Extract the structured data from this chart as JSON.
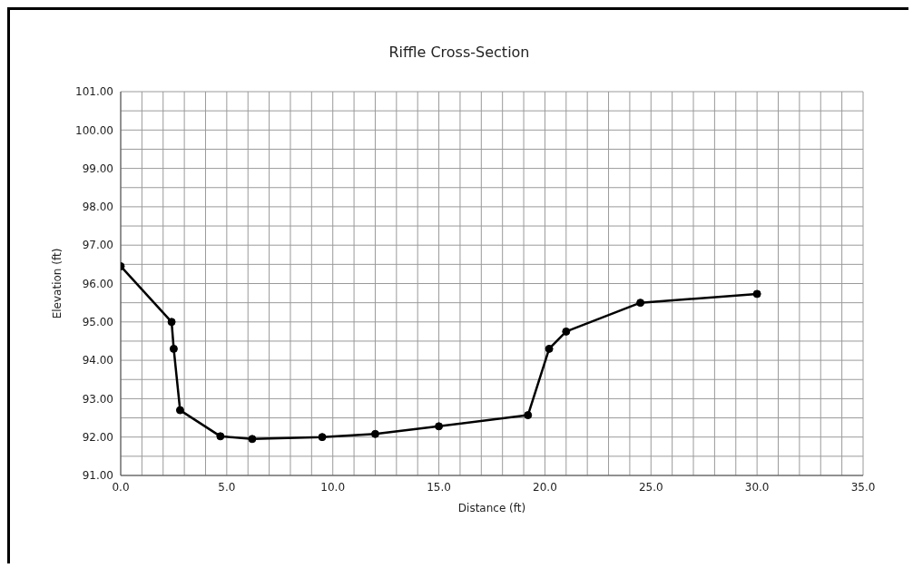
{
  "chart_data": {
    "type": "line",
    "title": "Riffle Cross-Section",
    "xlabel": "Distance (ft)",
    "ylabel": "Elevation (ft)",
    "x": [
      0,
      2.4,
      2.5,
      2.8,
      4.7,
      6.2,
      9.5,
      12.0,
      15.0,
      19.2,
      20.2,
      21.0,
      24.5,
      30.0
    ],
    "series": [
      {
        "color": "#000000",
        "values": [
          96.45,
          95.0,
          94.3,
          92.7,
          92.02,
          91.95,
          92.0,
          92.08,
          92.28,
          92.57,
          94.3,
          94.75,
          95.5,
          95.73
        ]
      }
    ],
    "xlim": [
      0,
      35
    ],
    "xticks": [
      {
        "value": 0,
        "label": "0.0"
      },
      {
        "value": 1,
        "label": null
      },
      {
        "value": 2,
        "label": null
      },
      {
        "value": 3,
        "label": null
      },
      {
        "value": 4,
        "label": null
      },
      {
        "value": 5,
        "label": "5.0"
      },
      {
        "value": 6,
        "label": null
      },
      {
        "value": 7,
        "label": null
      },
      {
        "value": 8,
        "label": null
      },
      {
        "value": 9,
        "label": null
      },
      {
        "value": 10,
        "label": "10.0"
      },
      {
        "value": 11,
        "label": null
      },
      {
        "value": 12,
        "label": null
      },
      {
        "value": 13,
        "label": null
      },
      {
        "value": 14,
        "label": null
      },
      {
        "value": 15,
        "label": "15.0"
      },
      {
        "value": 16,
        "label": null
      },
      {
        "value": 17,
        "label": null
      },
      {
        "value": 18,
        "label": null
      },
      {
        "value": 19,
        "label": null
      },
      {
        "value": 20,
        "label": "20.0"
      },
      {
        "value": 21,
        "label": null
      },
      {
        "value": 22,
        "label": null
      },
      {
        "value": 23,
        "label": null
      },
      {
        "value": 24,
        "label": null
      },
      {
        "value": 25,
        "label": "25.0"
      },
      {
        "value": 26,
        "label": null
      },
      {
        "value": 27,
        "label": null
      },
      {
        "value": 28,
        "label": null
      },
      {
        "value": 29,
        "label": null
      },
      {
        "value": 30,
        "label": "30.0"
      },
      {
        "value": 31,
        "label": null
      },
      {
        "value": 32,
        "label": null
      },
      {
        "value": 33,
        "label": null
      },
      {
        "value": 34,
        "label": null
      },
      {
        "value": 35,
        "label": "35.0"
      }
    ],
    "ylim": [
      91,
      101
    ],
    "yticks": [
      {
        "value": 91,
        "label": "91.00"
      },
      {
        "value": 91.5,
        "label": null
      },
      {
        "value": 92,
        "label": "92.00"
      },
      {
        "value": 92.5,
        "label": null
      },
      {
        "value": 93,
        "label": "93.00"
      },
      {
        "value": 93.5,
        "label": null
      },
      {
        "value": 94,
        "label": "94.00"
      },
      {
        "value": 94.5,
        "label": null
      },
      {
        "value": 95,
        "label": "95.00"
      },
      {
        "value": 95.5,
        "label": null
      },
      {
        "value": 96,
        "label": "96.00"
      },
      {
        "value": 96.5,
        "label": null
      },
      {
        "value": 97,
        "label": "97.00"
      },
      {
        "value": 97.5,
        "label": null
      },
      {
        "value": 98,
        "label": "98.00"
      },
      {
        "value": 98.5,
        "label": null
      },
      {
        "value": 99,
        "label": "99.00"
      },
      {
        "value": 99.5,
        "label": null
      },
      {
        "value": 100,
        "label": "100.00"
      },
      {
        "value": 100.5,
        "label": null
      },
      {
        "value": 101,
        "label": "101.00"
      }
    ],
    "grid": true,
    "marker": "circle",
    "line_style": "solid",
    "legend": false
  }
}
